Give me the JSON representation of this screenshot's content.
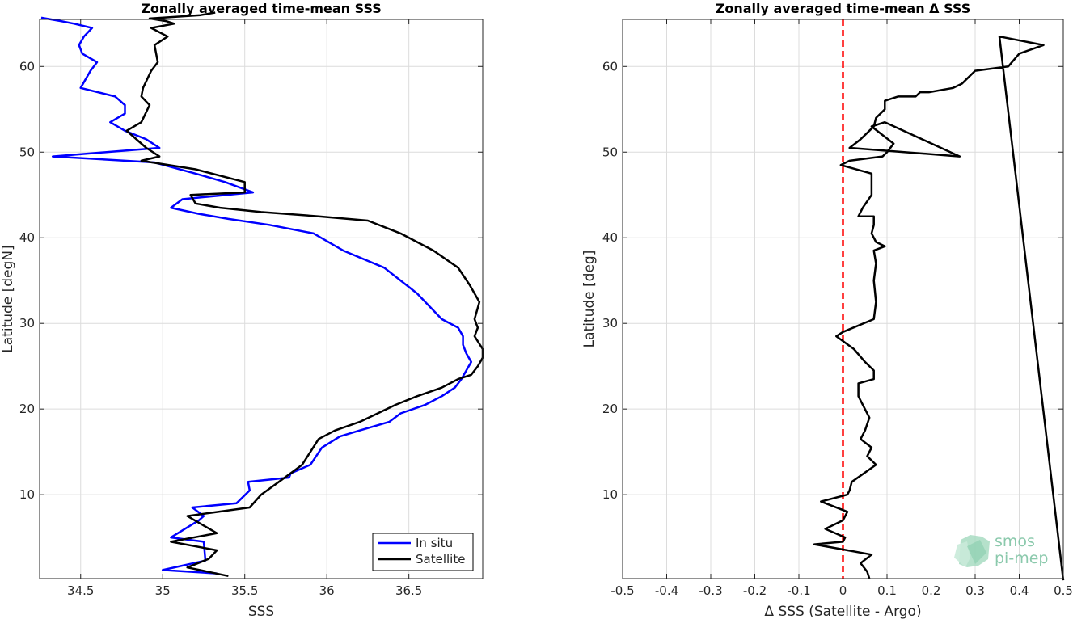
{
  "chart_data": [
    {
      "type": "line",
      "title": "Zonally averaged time-mean SSS",
      "xlabel": "SSS",
      "ylabel": "Latitude [degN]",
      "xlim": [
        34.25,
        36.95
      ],
      "ylim": [
        0.2,
        65.5
      ],
      "xticks": [
        34.5,
        35,
        35.5,
        36,
        36.5
      ],
      "xtick_labels": [
        "34.5",
        "35",
        "35.5",
        "36",
        "36.5"
      ],
      "yticks": [
        10,
        20,
        30,
        40,
        50,
        60
      ],
      "ytick_labels": [
        "10",
        "20",
        "30",
        "40",
        "50",
        "60"
      ],
      "grid": true,
      "legend_position": "bottom-right",
      "series": [
        {
          "name": "In situ",
          "color": "#0000ff",
          "x": [
            35.33,
            35.0,
            35.26,
            35.25,
            35.05,
            35.22,
            35.25,
            35.18,
            35.45,
            35.53,
            35.52,
            35.77,
            35.78,
            35.9,
            35.97,
            36.08,
            36.2,
            36.38,
            36.45,
            36.6,
            36.7,
            36.78,
            36.82,
            36.85,
            36.88,
            36.85,
            36.83,
            36.83,
            36.8,
            36.7,
            36.55,
            36.35,
            36.1,
            35.92,
            35.65,
            35.4,
            35.22,
            35.05,
            35.12,
            35.55,
            35.38,
            35.2,
            34.95,
            34.33,
            34.98,
            34.9,
            34.77,
            34.68,
            34.77,
            34.77,
            34.71,
            34.5,
            34.56,
            34.6,
            34.51,
            34.49,
            34.52,
            34.57,
            34.46,
            34.38,
            34.26
          ],
          "y": [
            0.8,
            1.2,
            2.3,
            4.5,
            5.0,
            7.0,
            7.5,
            8.5,
            9.0,
            10.5,
            11.5,
            12.0,
            12.5,
            13.5,
            15.5,
            16.8,
            17.5,
            18.5,
            19.5,
            20.5,
            21.5,
            22.5,
            23.5,
            24.5,
            25.5,
            26.5,
            27.5,
            28.5,
            29.5,
            30.5,
            33.5,
            36.5,
            38.5,
            40.5,
            41.5,
            42.2,
            42.8,
            43.5,
            44.5,
            45.3,
            46.5,
            47.5,
            48.8,
            49.5,
            50.5,
            51.5,
            52.5,
            53.5,
            54.5,
            55.5,
            56.5,
            57.5,
            59.5,
            60.5,
            61.5,
            62.5,
            63.5,
            64.5,
            65.0,
            65.3,
            65.7
          ]
        },
        {
          "name": "Satellite",
          "color": "#000000",
          "x": [
            35.4,
            35.15,
            35.28,
            35.33,
            35.05,
            35.33,
            35.15,
            35.53,
            35.6,
            35.78,
            35.85,
            35.95,
            36.05,
            36.2,
            36.42,
            36.55,
            36.7,
            36.8,
            36.88,
            36.92,
            36.95,
            36.95,
            36.9,
            36.92,
            36.9,
            36.93,
            36.87,
            36.8,
            36.65,
            36.45,
            36.25,
            35.95,
            35.6,
            35.35,
            35.2,
            35.17,
            35.5,
            35.5,
            35.2,
            34.87,
            34.98,
            34.9,
            34.78,
            34.87,
            34.92,
            34.87,
            34.88,
            34.93,
            34.97,
            34.95,
            35.03,
            34.93,
            35.07,
            35.02,
            34.92,
            35.23,
            35.32
          ],
          "y": [
            0.5,
            1.5,
            2.5,
            3.5,
            4.5,
            5.5,
            7.5,
            8.5,
            10.0,
            12.5,
            13.5,
            16.5,
            17.5,
            18.5,
            20.5,
            21.5,
            22.5,
            23.5,
            24.0,
            25.0,
            26.0,
            27.0,
            28.5,
            29.5,
            30.5,
            32.5,
            34.5,
            36.5,
            38.5,
            40.5,
            42.0,
            42.5,
            43.0,
            43.5,
            44.0,
            45.0,
            45.3,
            46.5,
            48.0,
            49.0,
            49.5,
            50.5,
            52.5,
            53.5,
            55.5,
            56.5,
            57.5,
            59.5,
            60.5,
            62.5,
            63.5,
            64.5,
            65.0,
            65.3,
            65.6,
            66.0,
            66.3
          ]
        }
      ]
    },
    {
      "type": "line",
      "title": "Zonally averaged time-mean Δ SSS",
      "xlabel": "Δ SSS (Satellite - Argo)",
      "ylabel": "Latitude [deg]",
      "xlim": [
        -0.5,
        0.5
      ],
      "ylim": [
        0.2,
        65.5
      ],
      "xticks": [
        -0.5,
        -0.4,
        -0.3,
        -0.2,
        -0.1,
        0,
        0.1,
        0.2,
        0.3,
        0.4,
        0.5
      ],
      "xtick_labels": [
        "-0.5",
        "-0.4",
        "-0.3",
        "-0.2",
        "-0.1",
        "0",
        "0.1",
        "0.2",
        "0.3",
        "0.4",
        "0.5"
      ],
      "yticks": [
        10,
        20,
        30,
        40,
        50,
        60
      ],
      "ytick_labels": [
        "10",
        "20",
        "30",
        "40",
        "50",
        "60"
      ],
      "grid": true,
      "reference_line": {
        "x": 0,
        "color": "#ff0000",
        "style": "dashed"
      },
      "series": [
        {
          "color": "#000000",
          "x": [
            0.06,
            0.055,
            0.04,
            0.065,
            -0.065,
            0.0,
            0.005,
            -0.04,
            0.0,
            0.01,
            -0.05,
            0.01,
            0.015,
            0.02,
            0.075,
            0.055,
            0.065,
            0.04,
            0.05,
            0.06,
            0.045,
            0.035,
            0.035,
            0.07,
            0.07,
            0.05,
            0.025,
            -0.015,
            0.0,
            0.07,
            0.075,
            0.07,
            0.075,
            0.07,
            0.095,
            0.075,
            0.07,
            0.065,
            0.07,
            0.07,
            0.035,
            0.045,
            0.065,
            0.065,
            -0.005,
            0.015,
            0.09,
            0.1,
            0.115,
            0.09,
            0.065,
            0.095,
            0.265,
            0.015,
            0.04,
            0.06,
            0.07,
            0.075,
            0.085,
            0.095,
            0.095,
            0.125,
            0.165,
            0.175,
            0.195,
            0.25,
            0.27,
            0.28,
            0.3,
            0.375,
            0.4,
            0.455,
            0.355,
            0.5
          ],
          "y": [
            0.2,
            1.0,
            2.0,
            3.0,
            4.2,
            4.5,
            5.0,
            6.0,
            7.0,
            8.0,
            9.2,
            10.0,
            10.5,
            11.5,
            13.5,
            14.5,
            15.5,
            16.5,
            17.5,
            19.0,
            20.5,
            21.5,
            23.0,
            23.5,
            24.5,
            25.5,
            27.0,
            28.5,
            29.0,
            30.5,
            32.5,
            35.0,
            37.0,
            38.5,
            39.0,
            39.5,
            40.0,
            40.5,
            41.5,
            42.5,
            42.5,
            43.5,
            45.0,
            47.5,
            48.5,
            49.0,
            49.5,
            50.0,
            51.0,
            52.0,
            53.0,
            53.5,
            49.5,
            50.5,
            51.5,
            52.5,
            53.0,
            54.0,
            54.5,
            55.0,
            56.0,
            56.5,
            56.5,
            57.0,
            57.0,
            57.5,
            58.0,
            58.5,
            59.5,
            60.0,
            61.5,
            62.5,
            63.5,
            0
          ]
        }
      ]
    }
  ],
  "legend": {
    "items": [
      {
        "label": "In situ",
        "color": "#0000ff"
      },
      {
        "label": "Satellite",
        "color": "#000000"
      }
    ]
  },
  "watermark": {
    "line1": "smos",
    "line2": "pi-mep"
  }
}
